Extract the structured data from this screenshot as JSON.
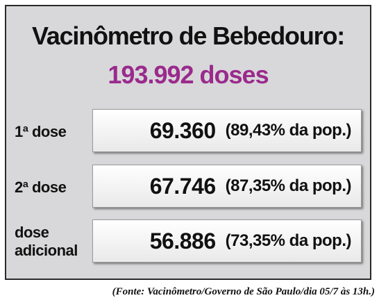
{
  "header": {
    "title": "Vacinômetro de Bebedouro:",
    "total": "193.992 doses"
  },
  "rows": [
    {
      "label": "1ª dose",
      "doses": "69.360",
      "coverage": "(89,43%  da pop.)"
    },
    {
      "label": "2ª dose",
      "doses": "67.746",
      "coverage": "(87,35%  da pop.)"
    },
    {
      "label": "dose adicional",
      "doses": "56.886",
      "coverage": "(73,35%  da pop.)"
    }
  ],
  "source": "(Fonte: Vacinômetro/Governo de São Paulo/dia 05/7 às 13h.)"
}
